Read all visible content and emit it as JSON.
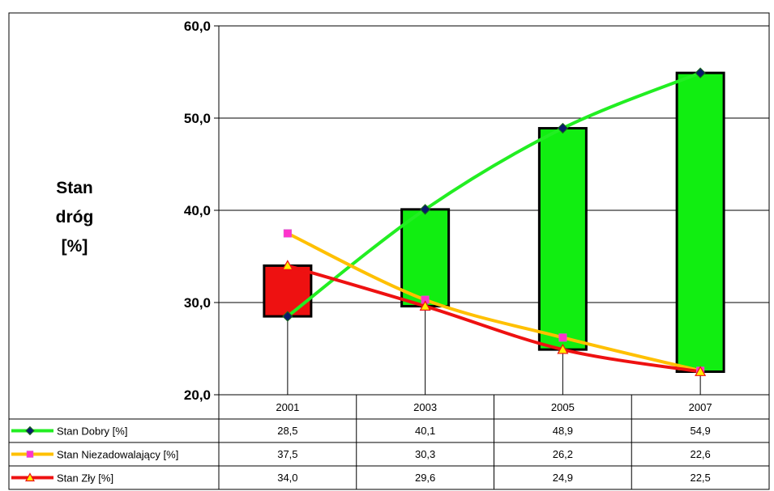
{
  "chart_data": {
    "type": "line",
    "title": "",
    "ylabel_lines": [
      "Stan",
      "dróg",
      "[%]"
    ],
    "ylim": [
      20,
      60
    ],
    "yticks": [
      "20,0",
      "30,0",
      "40,0",
      "50,0",
      "60,0"
    ],
    "ytick_values": [
      20,
      30,
      40,
      50,
      60
    ],
    "categories": [
      "2001",
      "2003",
      "2005",
      "2007"
    ],
    "series": [
      {
        "name": "Stan Dobry [%]",
        "values": [
          28.5,
          40.1,
          48.9,
          54.9
        ],
        "labels": [
          "28,5",
          "40,1",
          "48,9",
          "54,9"
        ],
        "color": "#22ee22",
        "marker": "diamond",
        "marker_fill": "#0a1a6a"
      },
      {
        "name": "Stan Niezadowalający [%]",
        "values": [
          37.5,
          30.3,
          26.2,
          22.6
        ],
        "labels": [
          "37,5",
          "30,3",
          "26,2",
          "22,6"
        ],
        "color": "#ffc000",
        "marker": "square",
        "marker_fill": "#ff33cc"
      },
      {
        "name": "Stan Zły  [%]",
        "values": [
          34.0,
          29.6,
          24.9,
          22.5
        ],
        "labels": [
          "34,0",
          "29,6",
          "24,9",
          "22,5"
        ],
        "color": "#ee1111",
        "marker": "triangle",
        "marker_fill": "#ffee00"
      }
    ],
    "updown_bars": {
      "up_color": "#11ee11",
      "down_color": "#ee1111"
    },
    "grid": true,
    "data_table": true
  }
}
